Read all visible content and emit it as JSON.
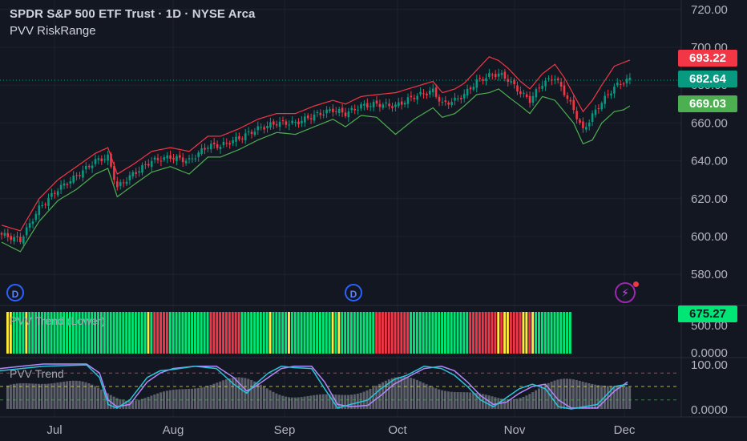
{
  "header": {
    "symbol_title": "SPDR S&P 500 ETF Trust · 1D · NYSE Arca",
    "indicator_name": "PVV RiskRange"
  },
  "price_tags": {
    "upper": "693.22",
    "last": "682.64",
    "lower": "669.03",
    "lower_pane": "675.27"
  },
  "badges": {
    "dividend_1": "D",
    "dividend_2": "D",
    "bolt_icon": "⚡"
  },
  "colors": {
    "background": "#131722",
    "up": "#089981",
    "down": "#f23645",
    "upper_band": "#f23645",
    "lower_band": "#4caf50",
    "green_bar": "#00e676",
    "yellow_bar": "#ffeb3b",
    "red_bar": "#f23645",
    "line_purple": "#b388ff",
    "line_cyan": "#26c6da"
  },
  "chart_data": [
    {
      "type": "candlestick",
      "title": "SPDR S&P 500 ETF Trust · 1D · NYSE Arca",
      "x_ticks": [
        "Jul",
        "Aug",
        "Sep",
        "Oct",
        "Nov",
        "Dec"
      ],
      "y_ticks": [
        "580.00",
        "600.00",
        "620.00",
        "640.00",
        "660.00",
        "680.00",
        "700.00",
        "720.00"
      ],
      "ylim": [
        573,
        723
      ],
      "grid": true,
      "last_price": 682.64,
      "anchors": [
        [
          0,
          601
        ],
        [
          6,
          598
        ],
        [
          12,
          615
        ],
        [
          18,
          625
        ],
        [
          24,
          632
        ],
        [
          30,
          640
        ],
        [
          34,
          642
        ],
        [
          37,
          626
        ],
        [
          42,
          633
        ],
        [
          48,
          640
        ],
        [
          54,
          642
        ],
        [
          60,
          640
        ],
        [
          66,
          648
        ],
        [
          70,
          648
        ],
        [
          76,
          652
        ],
        [
          82,
          657
        ],
        [
          88,
          660
        ],
        [
          94,
          660
        ],
        [
          100,
          664
        ],
        [
          106,
          667
        ],
        [
          110,
          665
        ],
        [
          115,
          669
        ],
        [
          120,
          670
        ],
        [
          126,
          669
        ],
        [
          132,
          674
        ],
        [
          138,
          677
        ],
        [
          141,
          670
        ],
        [
          145,
          672
        ],
        [
          148,
          675
        ],
        [
          152,
          682
        ],
        [
          156,
          685
        ],
        [
          159,
          686
        ],
        [
          162,
          683
        ],
        [
          166,
          676
        ],
        [
          169,
          672
        ],
        [
          173,
          681
        ],
        [
          177,
          684
        ],
        [
          180,
          676
        ],
        [
          183,
          667
        ],
        [
          186,
          656
        ],
        [
          189,
          664
        ],
        [
          192,
          671
        ],
        [
          196,
          679
        ],
        [
          199,
          682
        ],
        [
          201,
          683
        ]
      ],
      "upper_band": [
        [
          0,
          606
        ],
        [
          6,
          603
        ],
        [
          12,
          620
        ],
        [
          18,
          630
        ],
        [
          24,
          637
        ],
        [
          30,
          644
        ],
        [
          34,
          647
        ],
        [
          37,
          633
        ],
        [
          42,
          638
        ],
        [
          48,
          645
        ],
        [
          54,
          647
        ],
        [
          60,
          645
        ],
        [
          66,
          653
        ],
        [
          70,
          653
        ],
        [
          76,
          657
        ],
        [
          82,
          662
        ],
        [
          88,
          665
        ],
        [
          94,
          665
        ],
        [
          100,
          669
        ],
        [
          106,
          672
        ],
        [
          110,
          670
        ],
        [
          115,
          674
        ],
        [
          120,
          675
        ],
        [
          126,
          676
        ],
        [
          132,
          679
        ],
        [
          138,
          682
        ],
        [
          141,
          676
        ],
        [
          145,
          678
        ],
        [
          148,
          681
        ],
        [
          152,
          688
        ],
        [
          156,
          695
        ],
        [
          159,
          693
        ],
        [
          162,
          689
        ],
        [
          166,
          682
        ],
        [
          169,
          678
        ],
        [
          173,
          686
        ],
        [
          177,
          691
        ],
        [
          180,
          684
        ],
        [
          183,
          675
        ],
        [
          186,
          666
        ],
        [
          189,
          672
        ],
        [
          192,
          680
        ],
        [
          196,
          690
        ],
        [
          199,
          692
        ],
        [
          201,
          693.22
        ]
      ],
      "lower_band": [
        [
          0,
          597
        ],
        [
          6,
          592
        ],
        [
          12,
          608
        ],
        [
          18,
          619
        ],
        [
          24,
          625
        ],
        [
          30,
          633
        ],
        [
          34,
          636
        ],
        [
          37,
          621
        ],
        [
          42,
          627
        ],
        [
          48,
          634
        ],
        [
          54,
          637
        ],
        [
          60,
          633
        ],
        [
          66,
          642
        ],
        [
          70,
          642
        ],
        [
          76,
          646
        ],
        [
          82,
          651
        ],
        [
          88,
          655
        ],
        [
          94,
          654
        ],
        [
          100,
          658
        ],
        [
          106,
          662
        ],
        [
          110,
          658
        ],
        [
          115,
          664
        ],
        [
          120,
          663
        ],
        [
          126,
          654
        ],
        [
          132,
          662
        ],
        [
          138,
          668
        ],
        [
          141,
          663
        ],
        [
          145,
          665
        ],
        [
          148,
          669
        ],
        [
          152,
          675
        ],
        [
          156,
          676
        ],
        [
          159,
          678
        ],
        [
          162,
          674
        ],
        [
          166,
          669
        ],
        [
          169,
          665
        ],
        [
          173,
          674
        ],
        [
          177,
          672
        ],
        [
          180,
          666
        ],
        [
          183,
          660
        ],
        [
          186,
          649
        ],
        [
          189,
          651
        ],
        [
          192,
          660
        ],
        [
          196,
          666
        ],
        [
          199,
          667
        ],
        [
          201,
          669.03
        ]
      ]
    },
    {
      "type": "bar",
      "title": "PVV Trend (Lower)",
      "y_ticks": [
        "0.0000",
        "500.00"
      ],
      "last_value": 675.27,
      "segments": [
        {
          "color": "yellow",
          "count": 2
        },
        {
          "color": "green",
          "count": 4
        },
        {
          "color": "yellow",
          "count": 1
        },
        {
          "color": "green",
          "count": 38
        },
        {
          "color": "yellow",
          "count": 1
        },
        {
          "color": "green",
          "count": 1
        },
        {
          "color": "red",
          "count": 5
        },
        {
          "color": "green",
          "count": 13
        },
        {
          "color": "red",
          "count": 10
        },
        {
          "color": "green",
          "count": 9
        },
        {
          "color": "yellow",
          "count": 1
        },
        {
          "color": "green",
          "count": 5
        },
        {
          "color": "yellow",
          "count": 1
        },
        {
          "color": "green",
          "count": 13
        },
        {
          "color": "yellow",
          "count": 1
        },
        {
          "color": "green",
          "count": 1
        },
        {
          "color": "yellow",
          "count": 1
        },
        {
          "color": "green",
          "count": 11
        },
        {
          "color": "red",
          "count": 11
        },
        {
          "color": "green",
          "count": 19
        },
        {
          "color": "red",
          "count": 9
        },
        {
          "color": "yellow",
          "count": 1
        },
        {
          "color": "red",
          "count": 1
        },
        {
          "color": "yellow",
          "count": 2
        },
        {
          "color": "red",
          "count": 4
        },
        {
          "color": "yellow",
          "count": 2
        },
        {
          "color": "red",
          "count": 1
        },
        {
          "color": "yellow",
          "count": 1
        },
        {
          "color": "green",
          "count": 12
        }
      ]
    },
    {
      "type": "line",
      "title": "PVV Trend",
      "y_ticks": [
        "0.0000",
        "100.00"
      ],
      "ylim": [
        0,
        100
      ],
      "levels": [
        80,
        50,
        20
      ],
      "purple": [
        [
          0,
          90
        ],
        [
          10,
          95
        ],
        [
          20,
          100
        ],
        [
          40,
          100
        ],
        [
          46,
          80
        ],
        [
          50,
          20
        ],
        [
          54,
          5
        ],
        [
          60,
          10
        ],
        [
          68,
          60
        ],
        [
          74,
          80
        ],
        [
          80,
          90
        ],
        [
          90,
          95
        ],
        [
          100,
          95
        ],
        [
          108,
          70
        ],
        [
          114,
          40
        ],
        [
          118,
          50
        ],
        [
          124,
          70
        ],
        [
          130,
          90
        ],
        [
          136,
          95
        ],
        [
          144,
          95
        ],
        [
          150,
          60
        ],
        [
          156,
          10
        ],
        [
          162,
          5
        ],
        [
          170,
          8
        ],
        [
          176,
          30
        ],
        [
          182,
          55
        ],
        [
          188,
          70
        ],
        [
          196,
          90
        ],
        [
          204,
          95
        ],
        [
          210,
          85
        ],
        [
          216,
          60
        ],
        [
          222,
          30
        ],
        [
          228,
          10
        ],
        [
          234,
          15
        ],
        [
          240,
          35
        ],
        [
          246,
          50
        ],
        [
          252,
          55
        ],
        [
          258,
          20
        ],
        [
          264,
          2
        ],
        [
          270,
          2
        ],
        [
          276,
          2
        ],
        [
          284,
          40
        ],
        [
          290,
          60
        ]
      ],
      "cyan": [
        [
          0,
          85
        ],
        [
          10,
          90
        ],
        [
          20,
          95
        ],
        [
          40,
          98
        ],
        [
          46,
          70
        ],
        [
          50,
          10
        ],
        [
          54,
          2
        ],
        [
          60,
          20
        ],
        [
          68,
          70
        ],
        [
          74,
          85
        ],
        [
          80,
          88
        ],
        [
          90,
          95
        ],
        [
          100,
          90
        ],
        [
          108,
          55
        ],
        [
          114,
          35
        ],
        [
          118,
          55
        ],
        [
          124,
          80
        ],
        [
          130,
          95
        ],
        [
          136,
          92
        ],
        [
          144,
          90
        ],
        [
          150,
          45
        ],
        [
          156,
          2
        ],
        [
          162,
          10
        ],
        [
          170,
          20
        ],
        [
          176,
          45
        ],
        [
          182,
          65
        ],
        [
          188,
          75
        ],
        [
          196,
          95
        ],
        [
          204,
          90
        ],
        [
          210,
          75
        ],
        [
          216,
          50
        ],
        [
          222,
          20
        ],
        [
          228,
          5
        ],
        [
          234,
          25
        ],
        [
          240,
          45
        ],
        [
          246,
          55
        ],
        [
          252,
          45
        ],
        [
          258,
          5
        ],
        [
          264,
          0
        ],
        [
          270,
          5
        ],
        [
          276,
          10
        ],
        [
          284,
          50
        ],
        [
          290,
          55
        ]
      ]
    }
  ]
}
